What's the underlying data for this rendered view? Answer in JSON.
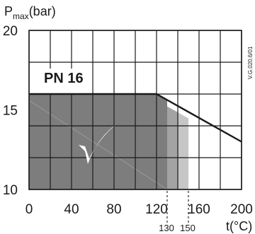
{
  "chart_data": {
    "type": "area",
    "xlabel": "t(°C)",
    "ylabel_main": "P",
    "ylabel_sub": "max",
    "ylabel_unit": "(bar)",
    "xlim": [
      0,
      200
    ],
    "ylim": [
      10,
      20
    ],
    "x_ticks": [
      "0",
      "40",
      "80",
      "120",
      "160",
      "200"
    ],
    "x_tick_values": [
      0,
      40,
      80,
      120,
      160,
      200
    ],
    "x_minor_ticks": [
      "130",
      "150"
    ],
    "x_minor_tick_values": [
      130,
      150
    ],
    "y_ticks": [
      "10",
      "15",
      "20"
    ],
    "y_tick_values": [
      10,
      15,
      20
    ],
    "grid": true,
    "grid_x_step": 20,
    "grid_y_step": 2,
    "series": [
      {
        "x": [
          0,
          120,
          200
        ],
        "y": [
          16,
          16,
          13
        ]
      }
    ],
    "permitted_region": {
      "x": [
        0,
        120,
        130
      ],
      "y": [
        16,
        16,
        15.6
      ],
      "color": "#7d7d7d"
    },
    "bands": [
      {
        "x_from": 130,
        "x_to": 140,
        "color": "#a3a3a3"
      },
      {
        "x_from": 140,
        "x_to": 150,
        "color": "#c6c6c6"
      }
    ],
    "annotation": "PN 16",
    "check_mark_icon": "check-mark-icon",
    "figure_code": "V.G.020.6/01",
    "colors": {
      "line": "#1a1a1a",
      "grid": "#1a1a1a",
      "label_box": "#ffffff"
    }
  }
}
